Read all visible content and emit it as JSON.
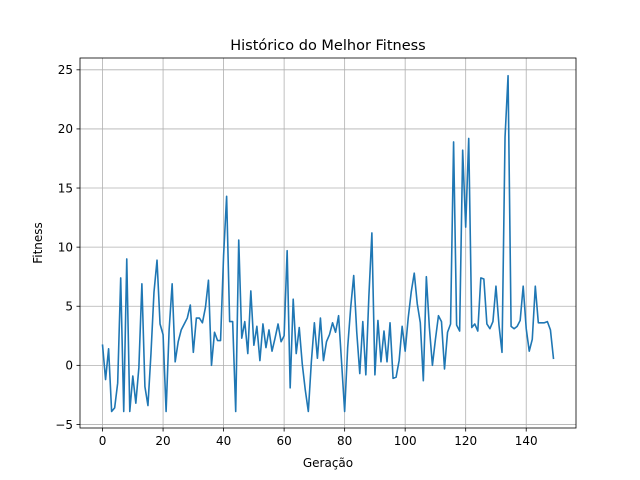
{
  "chart_data": {
    "type": "line",
    "title": "Histórico do Melhor Fitness",
    "xlabel": "Geração",
    "ylabel": "Fitness",
    "xlim": [
      -7.45,
      156.45
    ],
    "ylim": [
      -5.3,
      26.0
    ],
    "xticks": [
      0,
      20,
      40,
      60,
      80,
      100,
      120,
      140
    ],
    "yticks": [
      -5,
      0,
      5,
      10,
      15,
      20,
      25
    ],
    "grid": true,
    "legend": "none",
    "series": [
      {
        "color": "#1f77b4",
        "x": [
          0,
          1,
          2,
          3,
          4,
          5,
          6,
          7,
          8,
          9,
          10,
          11,
          12,
          13,
          14,
          15,
          16,
          17,
          18,
          19,
          20,
          21,
          22,
          23,
          24,
          25,
          26,
          27,
          28,
          29,
          30,
          31,
          32,
          33,
          34,
          35,
          36,
          37,
          38,
          39,
          40,
          41,
          42,
          43,
          44,
          45,
          46,
          47,
          48,
          49,
          50,
          51,
          52,
          53,
          54,
          55,
          56,
          57,
          58,
          59,
          60,
          61,
          62,
          63,
          64,
          65,
          66,
          67,
          68,
          69,
          70,
          71,
          72,
          73,
          74,
          75,
          76,
          77,
          78,
          79,
          80,
          81,
          82,
          83,
          84,
          85,
          86,
          87,
          88,
          89,
          90,
          91,
          92,
          93,
          94,
          95,
          96,
          97,
          98,
          99,
          100,
          101,
          102,
          103,
          104,
          105,
          106,
          107,
          108,
          109,
          110,
          111,
          112,
          113,
          114,
          115,
          116,
          117,
          118,
          119,
          120,
          121,
          122,
          123,
          124,
          125,
          126,
          127,
          128,
          129,
          130,
          131,
          132,
          133,
          134,
          135,
          136,
          137,
          138,
          139,
          140,
          141,
          142,
          143,
          144,
          145,
          146,
          147,
          148,
          149
        ],
        "values": [
          1.7,
          -1.2,
          1.4,
          -3.9,
          -3.6,
          -1.5,
          7.4,
          -3.9,
          9.0,
          -3.9,
          -0.9,
          -3.2,
          -0.2,
          6.9,
          -1.8,
          -3.4,
          1.0,
          6.2,
          8.9,
          3.5,
          2.6,
          -3.9,
          3.0,
          6.9,
          0.3,
          2.0,
          3.0,
          3.5,
          4.0,
          5.1,
          1.1,
          4.0,
          4.0,
          3.6,
          4.9,
          7.2,
          0.0,
          2.8,
          2.1,
          2.1,
          9.3,
          14.3,
          3.7,
          3.7,
          -3.9,
          10.6,
          2.3,
          3.7,
          1.0,
          6.3,
          1.7,
          3.3,
          0.4,
          3.5,
          1.5,
          3.0,
          1.2,
          2.3,
          3.5,
          2.0,
          2.5,
          9.7,
          -1.9,
          5.6,
          1.0,
          3.2,
          0.1,
          -2.1,
          -3.9,
          0.3,
          3.6,
          0.6,
          4.0,
          0.4,
          2.0,
          2.6,
          3.6,
          2.8,
          4.2,
          0.2,
          -3.9,
          1.5,
          4.9,
          7.6,
          2.8,
          -0.7,
          3.7,
          -0.8,
          5.8,
          11.2,
          -0.8,
          3.8,
          0.3,
          2.9,
          0.3,
          3.6,
          -1.1,
          -1.0,
          0.4,
          3.3,
          1.2,
          4.0,
          6.2,
          7.8,
          5.2,
          3.6,
          -1.3,
          7.5,
          3.2,
          0.0,
          2.2,
          4.2,
          3.7,
          -0.3,
          2.8,
          3.5,
          18.9,
          3.4,
          2.9,
          18.2,
          11.7,
          19.2,
          3.2,
          3.5,
          2.9,
          7.4,
          7.3,
          3.5,
          3.1,
          3.7,
          6.7,
          3.4,
          1.1,
          19.3,
          24.5,
          3.3,
          3.1,
          3.3,
          3.8,
          6.7,
          3.1,
          1.2,
          2.2,
          6.7,
          3.6,
          3.6,
          3.6,
          3.7,
          3.0,
          0.6
        ]
      }
    ]
  }
}
